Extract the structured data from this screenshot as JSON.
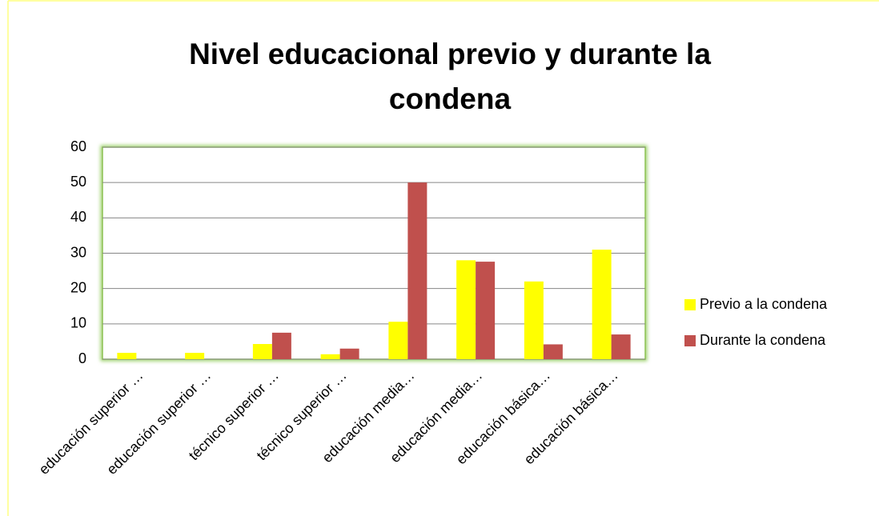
{
  "chart_data": {
    "type": "bar",
    "title": "Nivel educacional previo y durante la condena",
    "categories": [
      "educación superior …",
      "educación superior …",
      "técnico superior …",
      "técnico superior …",
      "educación media…",
      "educación media…",
      "educación básica…",
      "educación básica…"
    ],
    "series": [
      {
        "name": "Previo a la condena",
        "color": "#ffff00",
        "values": [
          1.8,
          1.8,
          4.3,
          1.4,
          10.6,
          28,
          22,
          31
        ]
      },
      {
        "name": "Durante la condena",
        "color": "#c0504d",
        "values": [
          0,
          0,
          7.5,
          3,
          50,
          27.6,
          4.2,
          7
        ]
      }
    ],
    "ylim": [
      0,
      60
    ],
    "yticks": [
      0,
      10,
      20,
      30,
      40,
      50,
      60
    ],
    "grid": true,
    "legend": "right"
  }
}
